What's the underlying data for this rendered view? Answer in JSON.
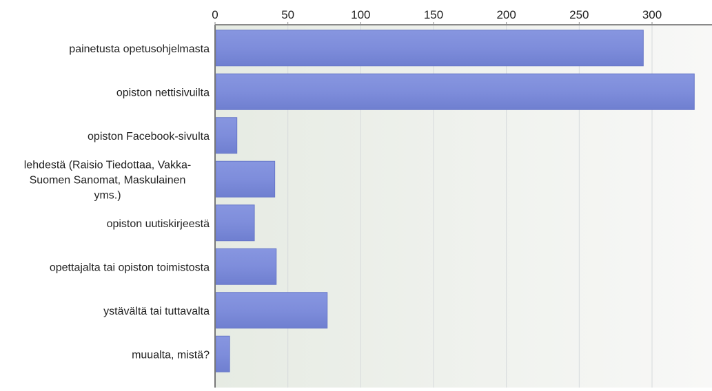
{
  "chart_data": {
    "type": "bar",
    "orientation": "horizontal",
    "categories": [
      [
        "painetusta opetusohjelmasta"
      ],
      [
        "opiston nettisivuilta"
      ],
      [
        "opiston Facebook-sivulta"
      ],
      [
        "lehdestä (Raisio Tiedottaa, Vakka-",
        "Suomen Sanomat, Maskulainen",
        "yms.)"
      ],
      [
        "opiston uutiskirjeestä"
      ],
      [
        "opettajalta tai opiston toimistosta"
      ],
      [
        "ystävältä tai tuttavalta"
      ],
      [
        "muualta, mistä?"
      ]
    ],
    "values": [
      294,
      329,
      15,
      41,
      27,
      42,
      77,
      10
    ],
    "xlim": [
      0,
      340
    ],
    "ticks": [
      0,
      50,
      100,
      150,
      200,
      250,
      300
    ],
    "tick_labels": [
      "0",
      "50",
      "100",
      "150",
      "200",
      "250",
      "300"
    ],
    "grid": true,
    "colors": {
      "bar": "#7f8fdc",
      "bar_edge": "#6676c8",
      "grid": "#d6d9dc",
      "axis": "#7a7a7a",
      "bg_left": "#e7ece4",
      "bg_right": "#f7f8f7"
    }
  }
}
